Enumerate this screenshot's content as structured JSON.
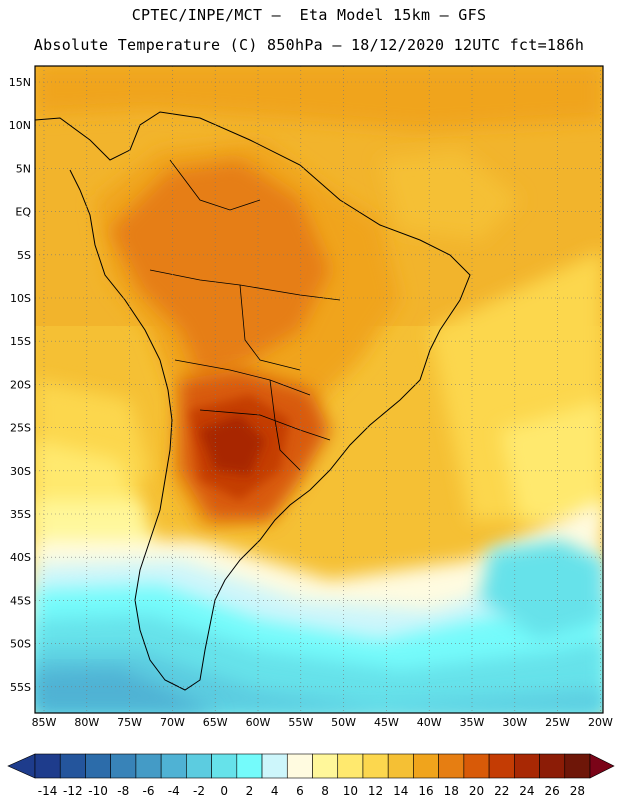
{
  "header": {
    "line1": "CPTEC/INPE/MCT –  Eta Model 15km – GFS",
    "line2": "Absolute Temperature (C) 850hPa – 18/12/2020 12UTC fct=186h"
  },
  "axes": {
    "lat_labels": [
      "15N",
      "10N",
      "5N",
      "EQ",
      "5S",
      "10S",
      "15S",
      "20S",
      "25S",
      "30S",
      "35S",
      "40S",
      "45S",
      "50S",
      "55S"
    ],
    "lon_labels": [
      "85W",
      "80W",
      "75W",
      "70W",
      "65W",
      "60W",
      "55W",
      "50W",
      "45W",
      "40W",
      "35W",
      "30W",
      "25W",
      "20W"
    ]
  },
  "colorbar": {
    "colors": [
      "#1e3c8c",
      "#24559c",
      "#2c6caa",
      "#3883b8",
      "#449bc6",
      "#4fb2d4",
      "#5ccce0",
      "#66e2ea",
      "#74fbfb",
      "#cdf6fb",
      "#fffbe0",
      "#fff79a",
      "#ffe96e",
      "#fcd74e",
      "#f5c034",
      "#f0a41c",
      "#e67e12",
      "#d85a08",
      "#c43c04",
      "#a82804",
      "#8c1c06",
      "#6e1608",
      "#7a0418"
    ],
    "labels": [
      "-14",
      "-12",
      "-10",
      "-8",
      "-6",
      "-4",
      "-2",
      "0",
      "2",
      "4",
      "6",
      "8",
      "10",
      "12",
      "14",
      "16",
      "18",
      "20",
      "22",
      "24",
      "26",
      "28"
    ]
  }
}
